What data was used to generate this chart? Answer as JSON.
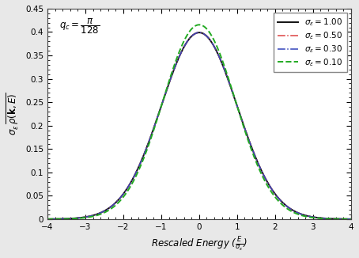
{
  "title": "",
  "annotation_text": "$q_c = \\dfrac{\\pi}{128}$",
  "xlabel": "Rescaled Energy ($\\frac{E}{\\sigma_\\varepsilon}$)",
  "ylabel": "$\\sigma_\\varepsilon\\, \\overline{\\rho(\\mathbf{k}, E)}$",
  "xlim": [
    -4,
    4
  ],
  "ylim": [
    0,
    0.45
  ],
  "yticks": [
    0,
    0.05,
    0.1,
    0.15,
    0.2,
    0.25,
    0.3,
    0.35,
    0.4,
    0.45
  ],
  "ytick_labels": [
    "0",
    "0.05",
    "0.1",
    "0.15",
    "0.2",
    "0.25",
    "0.3",
    "0.35",
    "0.4",
    "0.45"
  ],
  "xticks": [
    -4,
    -3,
    -2,
    -1,
    0,
    1,
    2,
    3,
    4
  ],
  "series": [
    {
      "sigma": 1.0,
      "std": 1.0,
      "color": "#111111",
      "linestyle": "solid",
      "linewidth": 1.4,
      "label": "$\\sigma_\\varepsilon = 1.00$"
    },
    {
      "sigma": 0.5,
      "std": 1.0,
      "color": "#dd4444",
      "linestyle": "dashdot",
      "linewidth": 1.1,
      "label": "$\\sigma_\\varepsilon = 0.50$"
    },
    {
      "sigma": 0.3,
      "std": 1.0,
      "color": "#3344bb",
      "linestyle": "dashdot",
      "linewidth": 1.1,
      "label": "$\\sigma_\\varepsilon = 0.30$"
    },
    {
      "sigma": 0.1,
      "std": 0.96,
      "color": "#22aa22",
      "linestyle": "dashed",
      "linewidth": 1.4,
      "label": "$\\sigma_\\varepsilon = 0.10$"
    }
  ],
  "background_color": "#ffffff",
  "figure_background": "#e8e8e8",
  "legend_fontsize": 7.5,
  "tick_labelsize": 7.5,
  "label_fontsize": 8.5,
  "annot_fontsize": 8.5
}
